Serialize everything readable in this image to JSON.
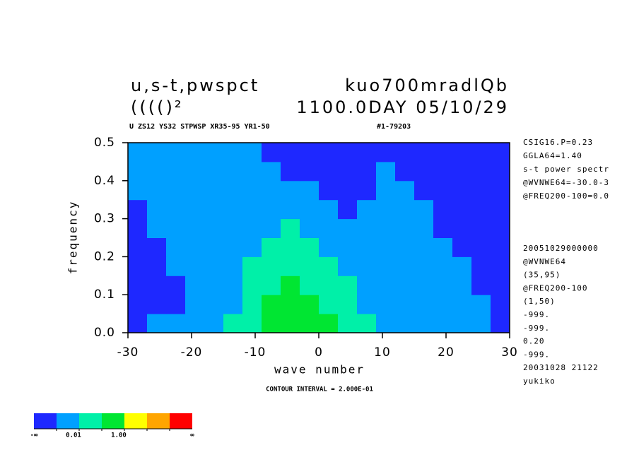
{
  "chart_data": {
    "type": "contour",
    "title_left": "u,s-t,pwspct",
    "title_right": "kuo700mradlQb",
    "title2_left": "(((()²",
    "title2_right": "1100.0DAY 05/10/29",
    "subtitle_left": "U ZS12 YS32 STPWSP XR35-95 YR1-50",
    "subtitle_right": "#1-79203",
    "x_label": "wave number",
    "y_label": "frequency",
    "footer": "CONTOUR INTERVAL = 2.000E-01",
    "xlim": [
      -30,
      30
    ],
    "ylim": [
      0,
      0.5
    ],
    "xticks": [
      -30,
      -20,
      -10,
      0,
      10,
      20,
      30
    ],
    "yticks": [
      {
        "value": 0,
        "label": "0.0"
      },
      0.1,
      0.2,
      0.3,
      0.4,
      0.5
    ],
    "x": [
      -28.5,
      -25.5,
      -22.5,
      -19.5,
      -16.5,
      -13.5,
      -10.5,
      -7.5,
      -4.5,
      -1.5,
      1.5,
      4.5,
      7.5,
      10.5,
      13.5,
      16.5,
      19.5,
      22.5,
      25.5,
      28.5
    ],
    "y": [
      0.025,
      0.075,
      0.125,
      0.175,
      0.225,
      0.275,
      0.325,
      0.375,
      0.425,
      0.475
    ],
    "z": [
      [
        0.0005,
        0.005,
        0.005,
        0.005,
        0.005,
        0.05,
        0.05,
        0.5,
        0.5,
        0.5,
        0.5,
        0.05,
        0.05,
        0.005,
        0.005,
        0.005,
        0.005,
        0.005,
        0.005,
        0.0005
      ],
      [
        0.0005,
        0.0005,
        0.0005,
        0.005,
        0.005,
        0.005,
        0.05,
        0.5,
        0.5,
        0.5,
        0.05,
        0.05,
        0.005,
        0.005,
        0.005,
        0.005,
        0.005,
        0.005,
        0.005,
        0.0005
      ],
      [
        0.0005,
        0.0005,
        0.0005,
        0.005,
        0.005,
        0.005,
        0.05,
        0.05,
        0.5,
        0.05,
        0.05,
        0.05,
        0.005,
        0.005,
        0.005,
        0.005,
        0.005,
        0.005,
        0.0005,
        0.0005
      ],
      [
        0.0005,
        0.0005,
        0.005,
        0.005,
        0.005,
        0.005,
        0.05,
        0.05,
        0.05,
        0.05,
        0.05,
        0.005,
        0.005,
        0.005,
        0.005,
        0.005,
        0.005,
        0.005,
        0.0005,
        0.0005
      ],
      [
        0.0005,
        0.0005,
        0.005,
        0.005,
        0.005,
        0.005,
        0.005,
        0.05,
        0.05,
        0.05,
        0.005,
        0.005,
        0.005,
        0.005,
        0.005,
        0.005,
        0.005,
        0.0005,
        0.0005,
        0.0005
      ],
      [
        0.0005,
        0.005,
        0.005,
        0.005,
        0.005,
        0.005,
        0.005,
        0.005,
        0.05,
        0.005,
        0.005,
        0.005,
        0.005,
        0.005,
        0.005,
        0.005,
        0.0005,
        0.0005,
        0.0005,
        0.0005
      ],
      [
        0.0005,
        0.005,
        0.005,
        0.005,
        0.005,
        0.005,
        0.005,
        0.005,
        0.005,
        0.005,
        0.005,
        0.0005,
        0.005,
        0.005,
        0.005,
        0.005,
        0.0005,
        0.0005,
        0.0005,
        0.0005
      ],
      [
        0.005,
        0.005,
        0.005,
        0.005,
        0.005,
        0.005,
        0.005,
        0.005,
        0.005,
        0.005,
        0.0005,
        0.0005,
        0.0005,
        0.005,
        0.005,
        0.0005,
        0.0005,
        0.0005,
        0.0005,
        0.0005
      ],
      [
        0.005,
        0.005,
        0.005,
        0.005,
        0.005,
        0.005,
        0.005,
        0.005,
        0.0005,
        0.0005,
        0.0005,
        0.0005,
        0.0005,
        0.005,
        0.0005,
        0.0005,
        0.0005,
        0.0005,
        0.0005,
        0.0005
      ],
      [
        0.005,
        0.005,
        0.005,
        0.005,
        0.005,
        0.005,
        0.005,
        0.0005,
        0.0005,
        0.0005,
        0.0005,
        0.0005,
        0.0005,
        0.0005,
        0.0005,
        0.0005,
        0.0005,
        0.0005,
        0.0005,
        0.0005
      ]
    ],
    "colorbar": {
      "colors": [
        "#1e28ff",
        "#00a0ff",
        "#00f0a8",
        "#00e632",
        "#ffff00",
        "#ffa500",
        "#ff0000"
      ],
      "levels": [
        0.001,
        0.01,
        0.1,
        1,
        10,
        100
      ],
      "min_label": "-∞",
      "max_label": "∞",
      "ticks": [
        {
          "value": 0.01,
          "label": "0.01"
        },
        {
          "value": 1,
          "label": "1.00"
        }
      ]
    },
    "notes_top": [
      "CSIG16.P=0.23",
      "GGLA64=1.40",
      "s-t power spectr",
      "@WVNWE64=-30.0-3",
      "@FREQ200-100=0.0"
    ],
    "notes_bottom": [
      "20051029000000",
      "@WVNWE64",
      "(35,95)",
      "@FREQ200-100",
      "(1,50)",
      "-999.",
      "-999.",
      "0.20",
      "-999.",
      "20031028  21122",
      "yukiko"
    ]
  }
}
